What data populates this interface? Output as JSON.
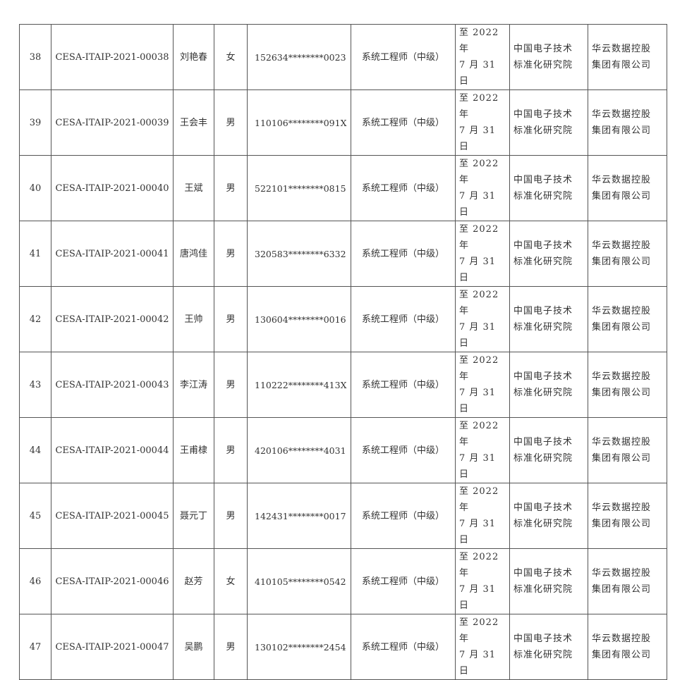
{
  "rows": [
    {
      "no": "38",
      "cert": "CESA-ITAIP-2021-00038",
      "name": "刘艳春",
      "gender": "女",
      "id": "152634********0023",
      "title": "系统工程师（中级）",
      "valid1": "至 2022 年",
      "valid2": "7 月 31 日",
      "org1": "中国电子技术",
      "org2": "标准化研究院",
      "company1": "华云数据控股",
      "company2": "集团有限公司"
    },
    {
      "no": "39",
      "cert": "CESA-ITAIP-2021-00039",
      "name": "王会丰",
      "gender": "男",
      "id": "110106********091X",
      "title": "系统工程师（中级）",
      "valid1": "至 2022 年",
      "valid2": "7 月 31 日",
      "org1": "中国电子技术",
      "org2": "标准化研究院",
      "company1": "华云数据控股",
      "company2": "集团有限公司"
    },
    {
      "no": "40",
      "cert": "CESA-ITAIP-2021-00040",
      "name": "王斌",
      "gender": "男",
      "id": "522101********0815",
      "title": "系统工程师（中级）",
      "valid1": "至 2022 年",
      "valid2": "7 月 31 日",
      "org1": "中国电子技术",
      "org2": "标准化研究院",
      "company1": "华云数据控股",
      "company2": "集团有限公司"
    },
    {
      "no": "41",
      "cert": "CESA-ITAIP-2021-00041",
      "name": "唐鸿佳",
      "gender": "男",
      "id": "320583********6332",
      "title": "系统工程师（中级）",
      "valid1": "至 2022 年",
      "valid2": "7 月 31 日",
      "org1": "中国电子技术",
      "org2": "标准化研究院",
      "company1": "华云数据控股",
      "company2": "集团有限公司"
    },
    {
      "no": "42",
      "cert": "CESA-ITAIP-2021-00042",
      "name": "王帅",
      "gender": "男",
      "id": "130604********0016",
      "title": "系统工程师（中级）",
      "valid1": "至 2022 年",
      "valid2": "7 月 31 日",
      "org1": "中国电子技术",
      "org2": "标准化研究院",
      "company1": "华云数据控股",
      "company2": "集团有限公司"
    },
    {
      "no": "43",
      "cert": "CESA-ITAIP-2021-00043",
      "name": "李江涛",
      "gender": "男",
      "id": "110222********413X",
      "title": "系统工程师（中级）",
      "valid1": "至 2022 年",
      "valid2": "7 月 31 日",
      "org1": "中国电子技术",
      "org2": "标准化研究院",
      "company1": "华云数据控股",
      "company2": "集团有限公司"
    },
    {
      "no": "44",
      "cert": "CESA-ITAIP-2021-00044",
      "name": "王甫棣",
      "gender": "男",
      "id": "420106********4031",
      "title": "系统工程师（中级）",
      "valid1": "至 2022 年",
      "valid2": "7 月 31 日",
      "org1": "中国电子技术",
      "org2": "标准化研究院",
      "company1": "华云数据控股",
      "company2": "集团有限公司"
    },
    {
      "no": "45",
      "cert": "CESA-ITAIP-2021-00045",
      "name": "聂元丁",
      "gender": "男",
      "id": "142431********0017",
      "title": "系统工程师（中级）",
      "valid1": "至 2022 年",
      "valid2": "7 月 31 日",
      "org1": "中国电子技术",
      "org2": "标准化研究院",
      "company1": "华云数据控股",
      "company2": "集团有限公司"
    },
    {
      "no": "46",
      "cert": "CESA-ITAIP-2021-00046",
      "name": "赵芳",
      "gender": "女",
      "id": "410105********0542",
      "title": "系统工程师（中级）",
      "valid1": "至 2022 年",
      "valid2": "7 月 31 日",
      "org1": "中国电子技术",
      "org2": "标准化研究院",
      "company1": "华云数据控股",
      "company2": "集团有限公司"
    },
    {
      "no": "47",
      "cert": "CESA-ITAIP-2021-00047",
      "name": "吴鹏",
      "gender": "男",
      "id": "130102********2454",
      "title": "系统工程师（中级）",
      "valid1": "至 2022 年",
      "valid2": "7 月 31 日",
      "org1": "中国电子技术",
      "org2": "标准化研究院",
      "company1": "华云数据控股",
      "company2": "集团有限公司"
    }
  ]
}
